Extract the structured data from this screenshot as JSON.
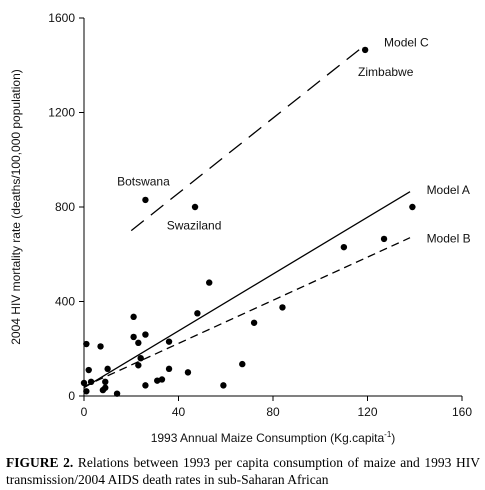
{
  "chart_data": {
    "type": "scatter",
    "xlabel": "1993 Annual Maize Consumption (Kg.capita",
    "xlabel_sup": "-1",
    "xlabel_close": ")",
    "ylabel": "2004 HIV mortality rate (deaths/100,000 population)",
    "xlim": [
      0,
      160
    ],
    "ylim": [
      0,
      1600
    ],
    "xticks": [
      0,
      40,
      80,
      120,
      160
    ],
    "yticks": [
      0,
      400,
      800,
      1200,
      1600
    ],
    "grid": false,
    "points": [
      {
        "x": 0,
        "y": 55
      },
      {
        "x": 1,
        "y": 20
      },
      {
        "x": 1,
        "y": 220
      },
      {
        "x": 2,
        "y": 110
      },
      {
        "x": 3,
        "y": 60
      },
      {
        "x": 7,
        "y": 210
      },
      {
        "x": 8,
        "y": 25
      },
      {
        "x": 9,
        "y": 60
      },
      {
        "x": 9,
        "y": 35
      },
      {
        "x": 10,
        "y": 115
      },
      {
        "x": 14,
        "y": 10
      },
      {
        "x": 21,
        "y": 335
      },
      {
        "x": 21,
        "y": 250
      },
      {
        "x": 23,
        "y": 130
      },
      {
        "x": 23,
        "y": 225
      },
      {
        "x": 24,
        "y": 160
      },
      {
        "x": 26,
        "y": 45
      },
      {
        "x": 26,
        "y": 260
      },
      {
        "x": 31,
        "y": 65
      },
      {
        "x": 33,
        "y": 70
      },
      {
        "x": 36,
        "y": 230
      },
      {
        "x": 36,
        "y": 115
      },
      {
        "x": 44,
        "y": 100
      },
      {
        "x": 48,
        "y": 350
      },
      {
        "x": 53,
        "y": 480
      },
      {
        "x": 59,
        "y": 45
      },
      {
        "x": 67,
        "y": 135
      },
      {
        "x": 72,
        "y": 310
      },
      {
        "x": 84,
        "y": 375
      },
      {
        "x": 110,
        "y": 630
      },
      {
        "x": 127,
        "y": 665
      },
      {
        "x": 139,
        "y": 800
      },
      {
        "x": 26,
        "y": 830
      },
      {
        "x": 47,
        "y": 800
      },
      {
        "x": 119,
        "y": 1465
      }
    ],
    "lines": [
      {
        "name": "Model A",
        "style": "solid",
        "x": [
          0,
          138
        ],
        "y": [
          35,
          865
        ]
      },
      {
        "name": "Model B",
        "style": "dashed",
        "x": [
          0,
          138
        ],
        "y": [
          40,
          670
        ]
      },
      {
        "name": "Model C",
        "style": "longdash",
        "x": [
          20,
          117
        ],
        "y": [
          700,
          1470
        ]
      }
    ],
    "annotations": [
      {
        "text": "Model C",
        "x": 127,
        "y": 1480
      },
      {
        "text": "Zimbabwe",
        "x": 116,
        "y": 1355
      },
      {
        "text": "Botswana",
        "x": 14,
        "y": 890
      },
      {
        "text": "Swaziland",
        "x": 35,
        "y": 705
      },
      {
        "text": "Model A",
        "x": 145,
        "y": 855
      },
      {
        "text": "Model B",
        "x": 145,
        "y": 650
      }
    ]
  },
  "caption": {
    "label": "FIGURE 2.",
    "text": "Relations between 1993 per capita consumption of maize and 1993 HIV transmission/2004 AIDS death rates in sub-Saharan African"
  }
}
